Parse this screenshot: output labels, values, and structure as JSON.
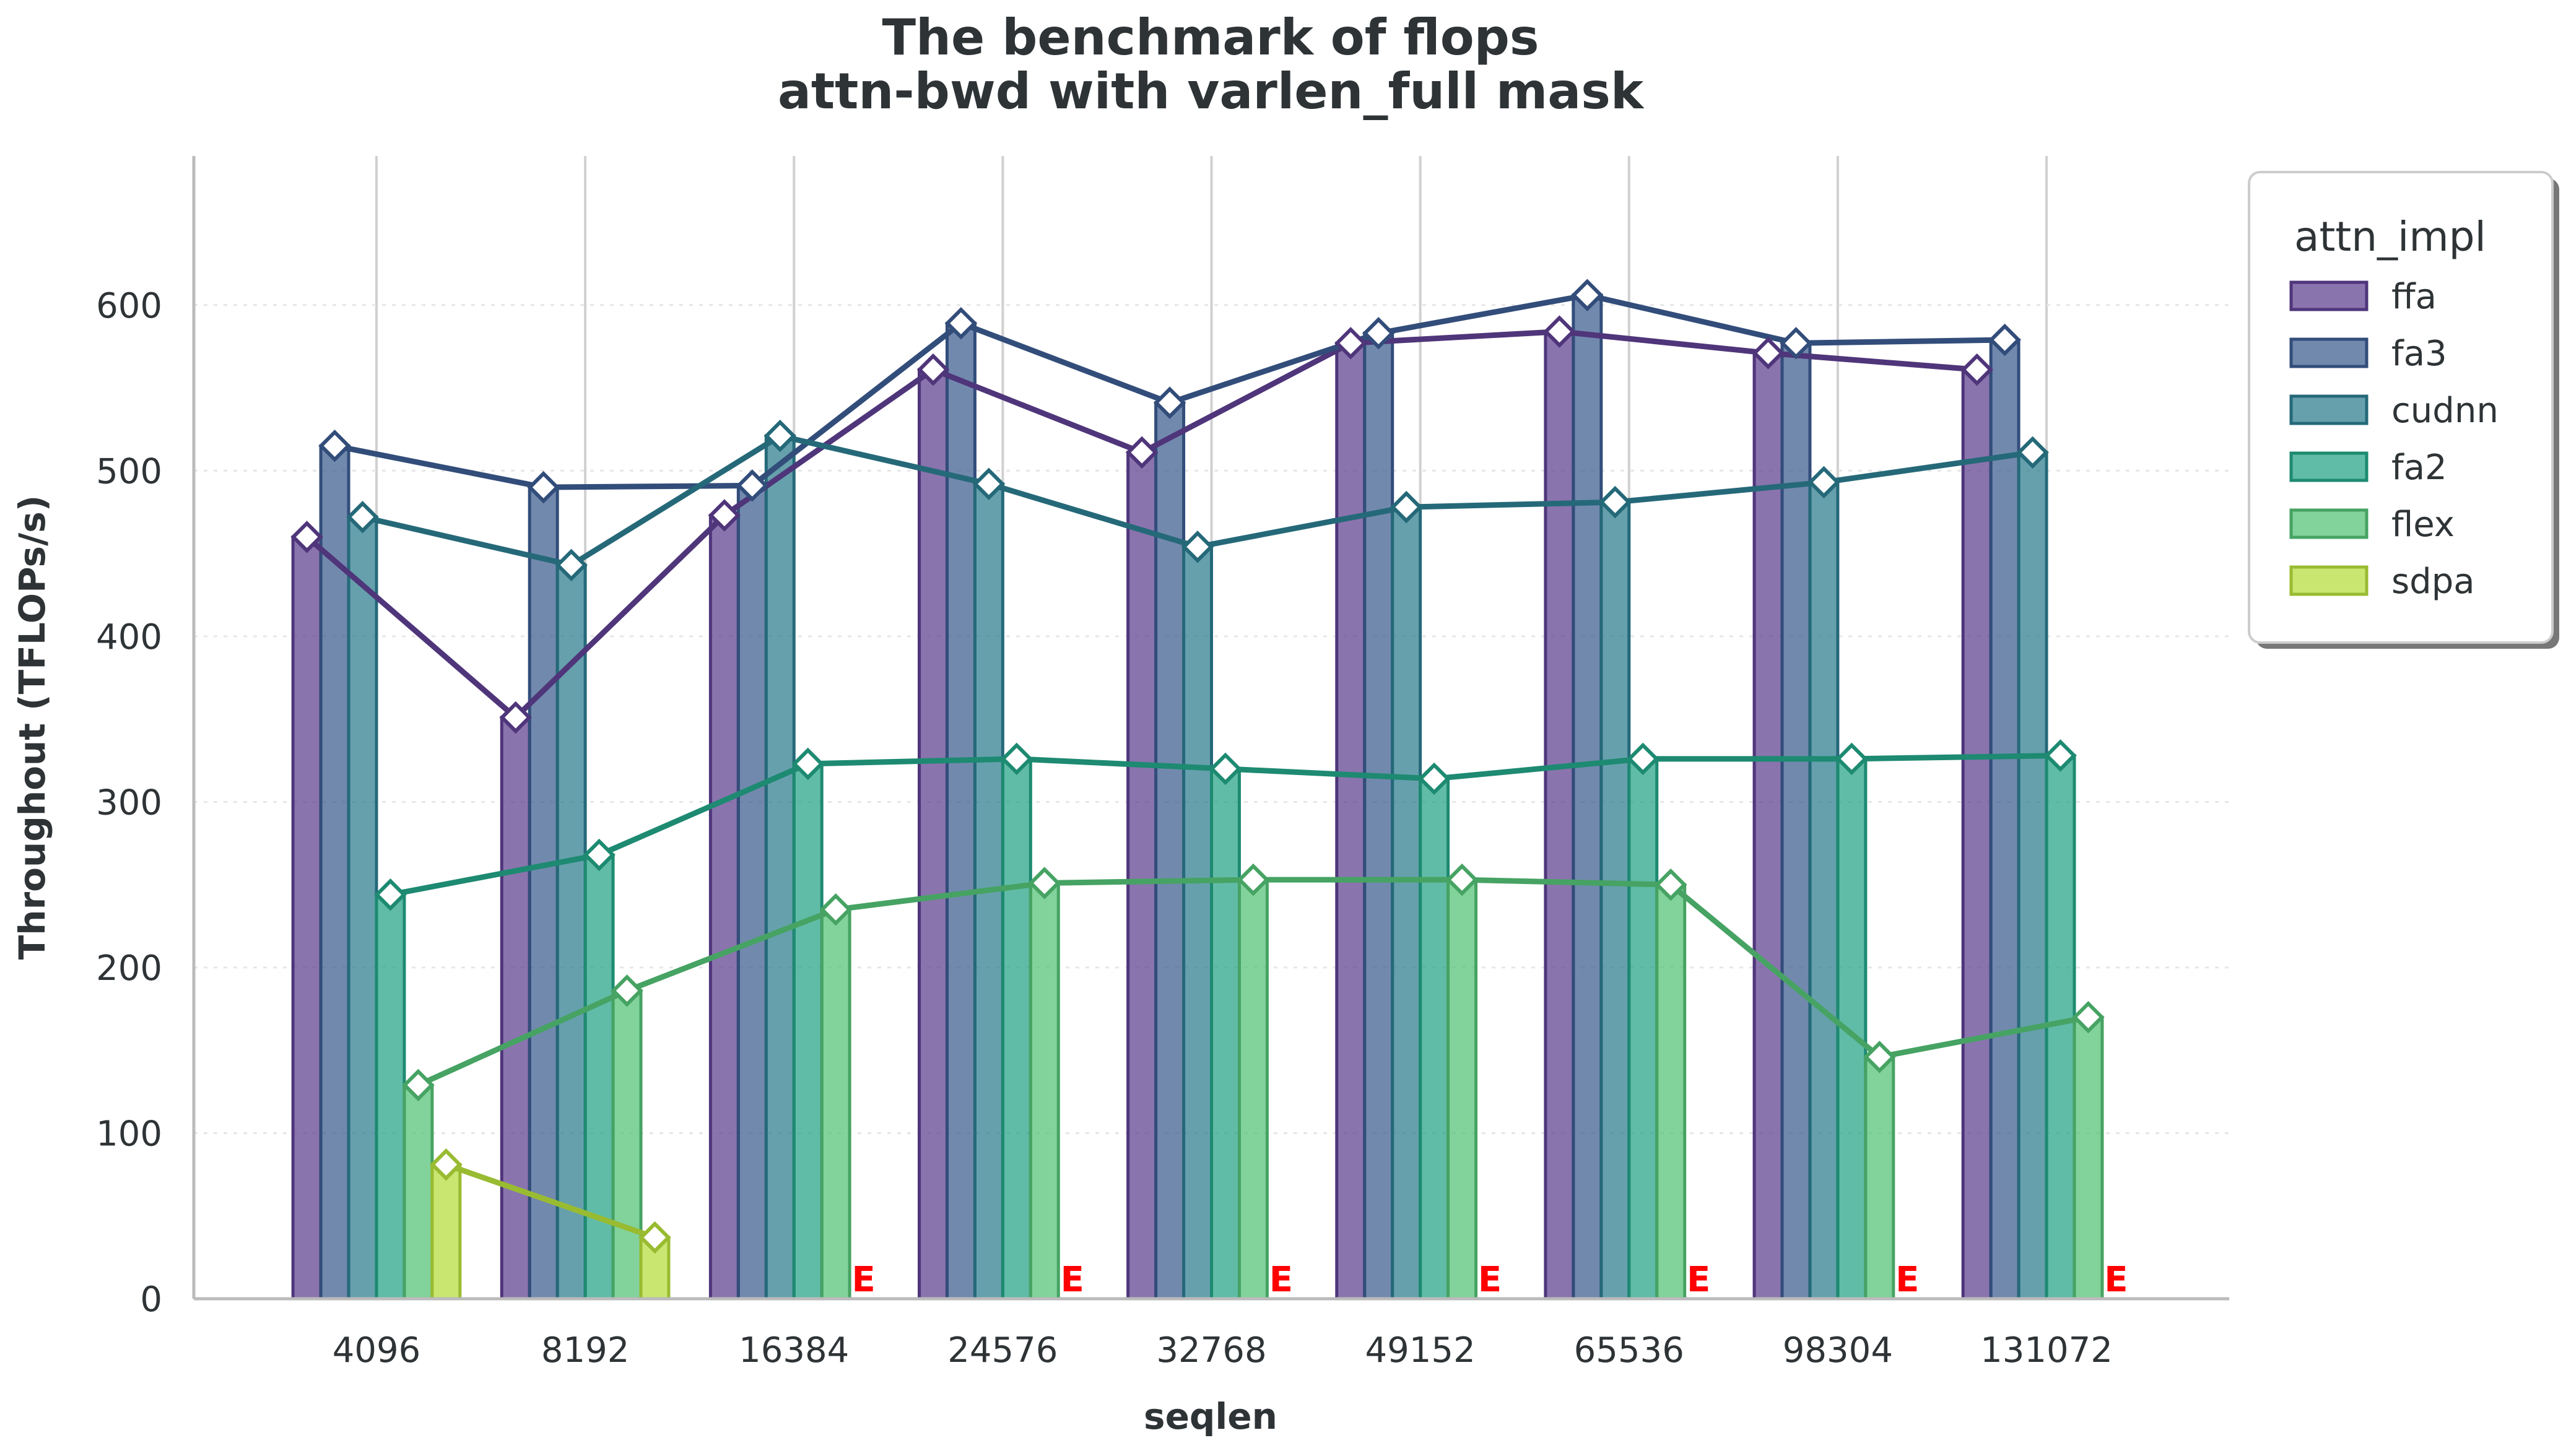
{
  "chart_data": {
    "type": "bar",
    "title": "The benchmark of flops",
    "subtitle": "attn-bwd with varlen_full mask",
    "xlabel": "seqlen",
    "ylabel": "Throughout (TFLOPs/s)",
    "categories": [
      "4096",
      "8192",
      "16384",
      "24576",
      "32768",
      "49152",
      "65536",
      "98304",
      "131072"
    ],
    "ylim": [
      0,
      690
    ],
    "yticks": [
      "0",
      "100",
      "200",
      "300",
      "400",
      "500",
      "600"
    ],
    "grid": "vertical solid at categories, horizontal dotted at y-ticks",
    "legend": {
      "title": "attn_impl",
      "placement": "right"
    },
    "error_marker": "E",
    "series": [
      {
        "name": "ffa",
        "color": "#5d3e8f",
        "values": [
          460,
          351,
          473,
          561,
          511,
          577,
          584,
          571,
          561
        ]
      },
      {
        "name": "fa3",
        "color": "#3b5b8f",
        "values": [
          515,
          490,
          491,
          589,
          541,
          583,
          606,
          577,
          579
        ]
      },
      {
        "name": "cudnn",
        "color": "#2b7b8e",
        "values": [
          472,
          443,
          521,
          492,
          454,
          478,
          481,
          493,
          511
        ]
      },
      {
        "name": "fa2",
        "color": "#22a285",
        "values": [
          244,
          268,
          323,
          326,
          320,
          314,
          326,
          326,
          328
        ]
      },
      {
        "name": "flex",
        "color": "#52c075",
        "values": [
          129,
          186,
          235,
          251,
          253,
          253,
          250,
          146,
          170
        ]
      },
      {
        "name": "sdpa",
        "color": "#b4dc3a",
        "values": [
          81,
          37,
          null,
          null,
          null,
          null,
          null,
          null,
          null
        ]
      }
    ]
  }
}
